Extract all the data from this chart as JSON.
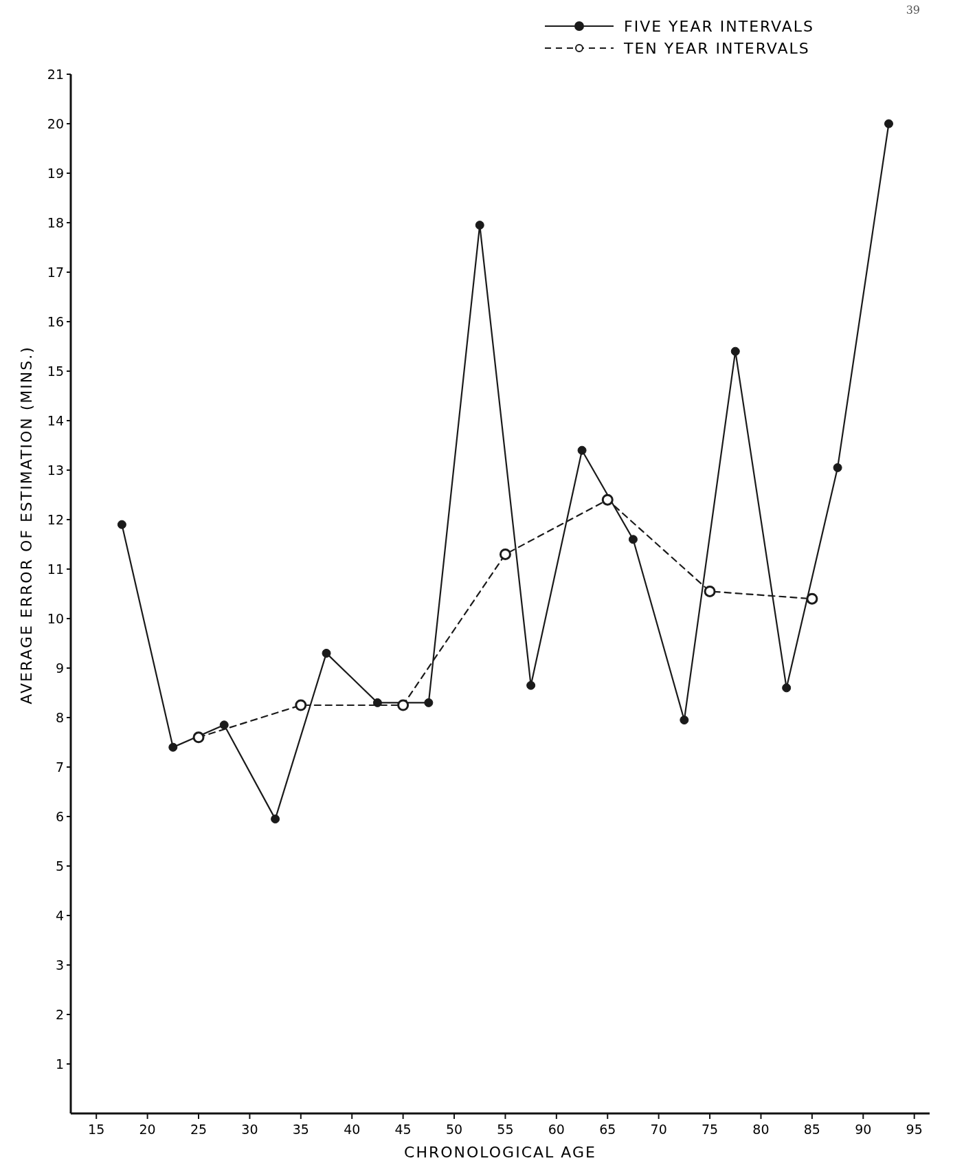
{
  "chart_data": {
    "type": "line",
    "xlabel": "CHRONOLOGICAL AGE",
    "ylabel": "AVERAGE ERROR OF ESTIMATION (MINS.)",
    "annotations": [
      "39"
    ],
    "xlim": [
      12.5,
      96.5
    ],
    "xticks": [
      15,
      20,
      25,
      30,
      35,
      40,
      45,
      50,
      55,
      60,
      65,
      70,
      75,
      80,
      85,
      90,
      95
    ],
    "ylim": [
      0,
      21
    ],
    "yticks": [
      1,
      2,
      3,
      4,
      5,
      6,
      7,
      8,
      9,
      10,
      11,
      12,
      13,
      14,
      15,
      16,
      17,
      18,
      19,
      20,
      21
    ],
    "grid": false,
    "legend": "top right",
    "marker": "circle",
    "series": [
      {
        "name": "FIVE YEAR INTERVALS",
        "color": "#1a1a1a",
        "line_style": "solid",
        "x": [
          17.5,
          22.5,
          27.5,
          32.5,
          37.5,
          42.5,
          47.5,
          52.5,
          57.5,
          62.5,
          67.5,
          72.5,
          77.5,
          82.5,
          87.5,
          92.5
        ],
        "values": [
          11.9,
          7.4,
          7.85,
          5.95,
          9.3,
          8.3,
          8.3,
          17.95,
          8.65,
          13.4,
          11.6,
          7.95,
          15.4,
          8.6,
          13.05,
          20.0
        ]
      },
      {
        "name": "TEN YEAR INTERVALS",
        "color": "#1a1a1a",
        "line_style": "dashed",
        "x": [
          25,
          35,
          45,
          55,
          65,
          75,
          85
        ],
        "values": [
          7.6,
          8.25,
          8.25,
          11.3,
          12.4,
          10.55,
          10.4
        ]
      }
    ]
  }
}
